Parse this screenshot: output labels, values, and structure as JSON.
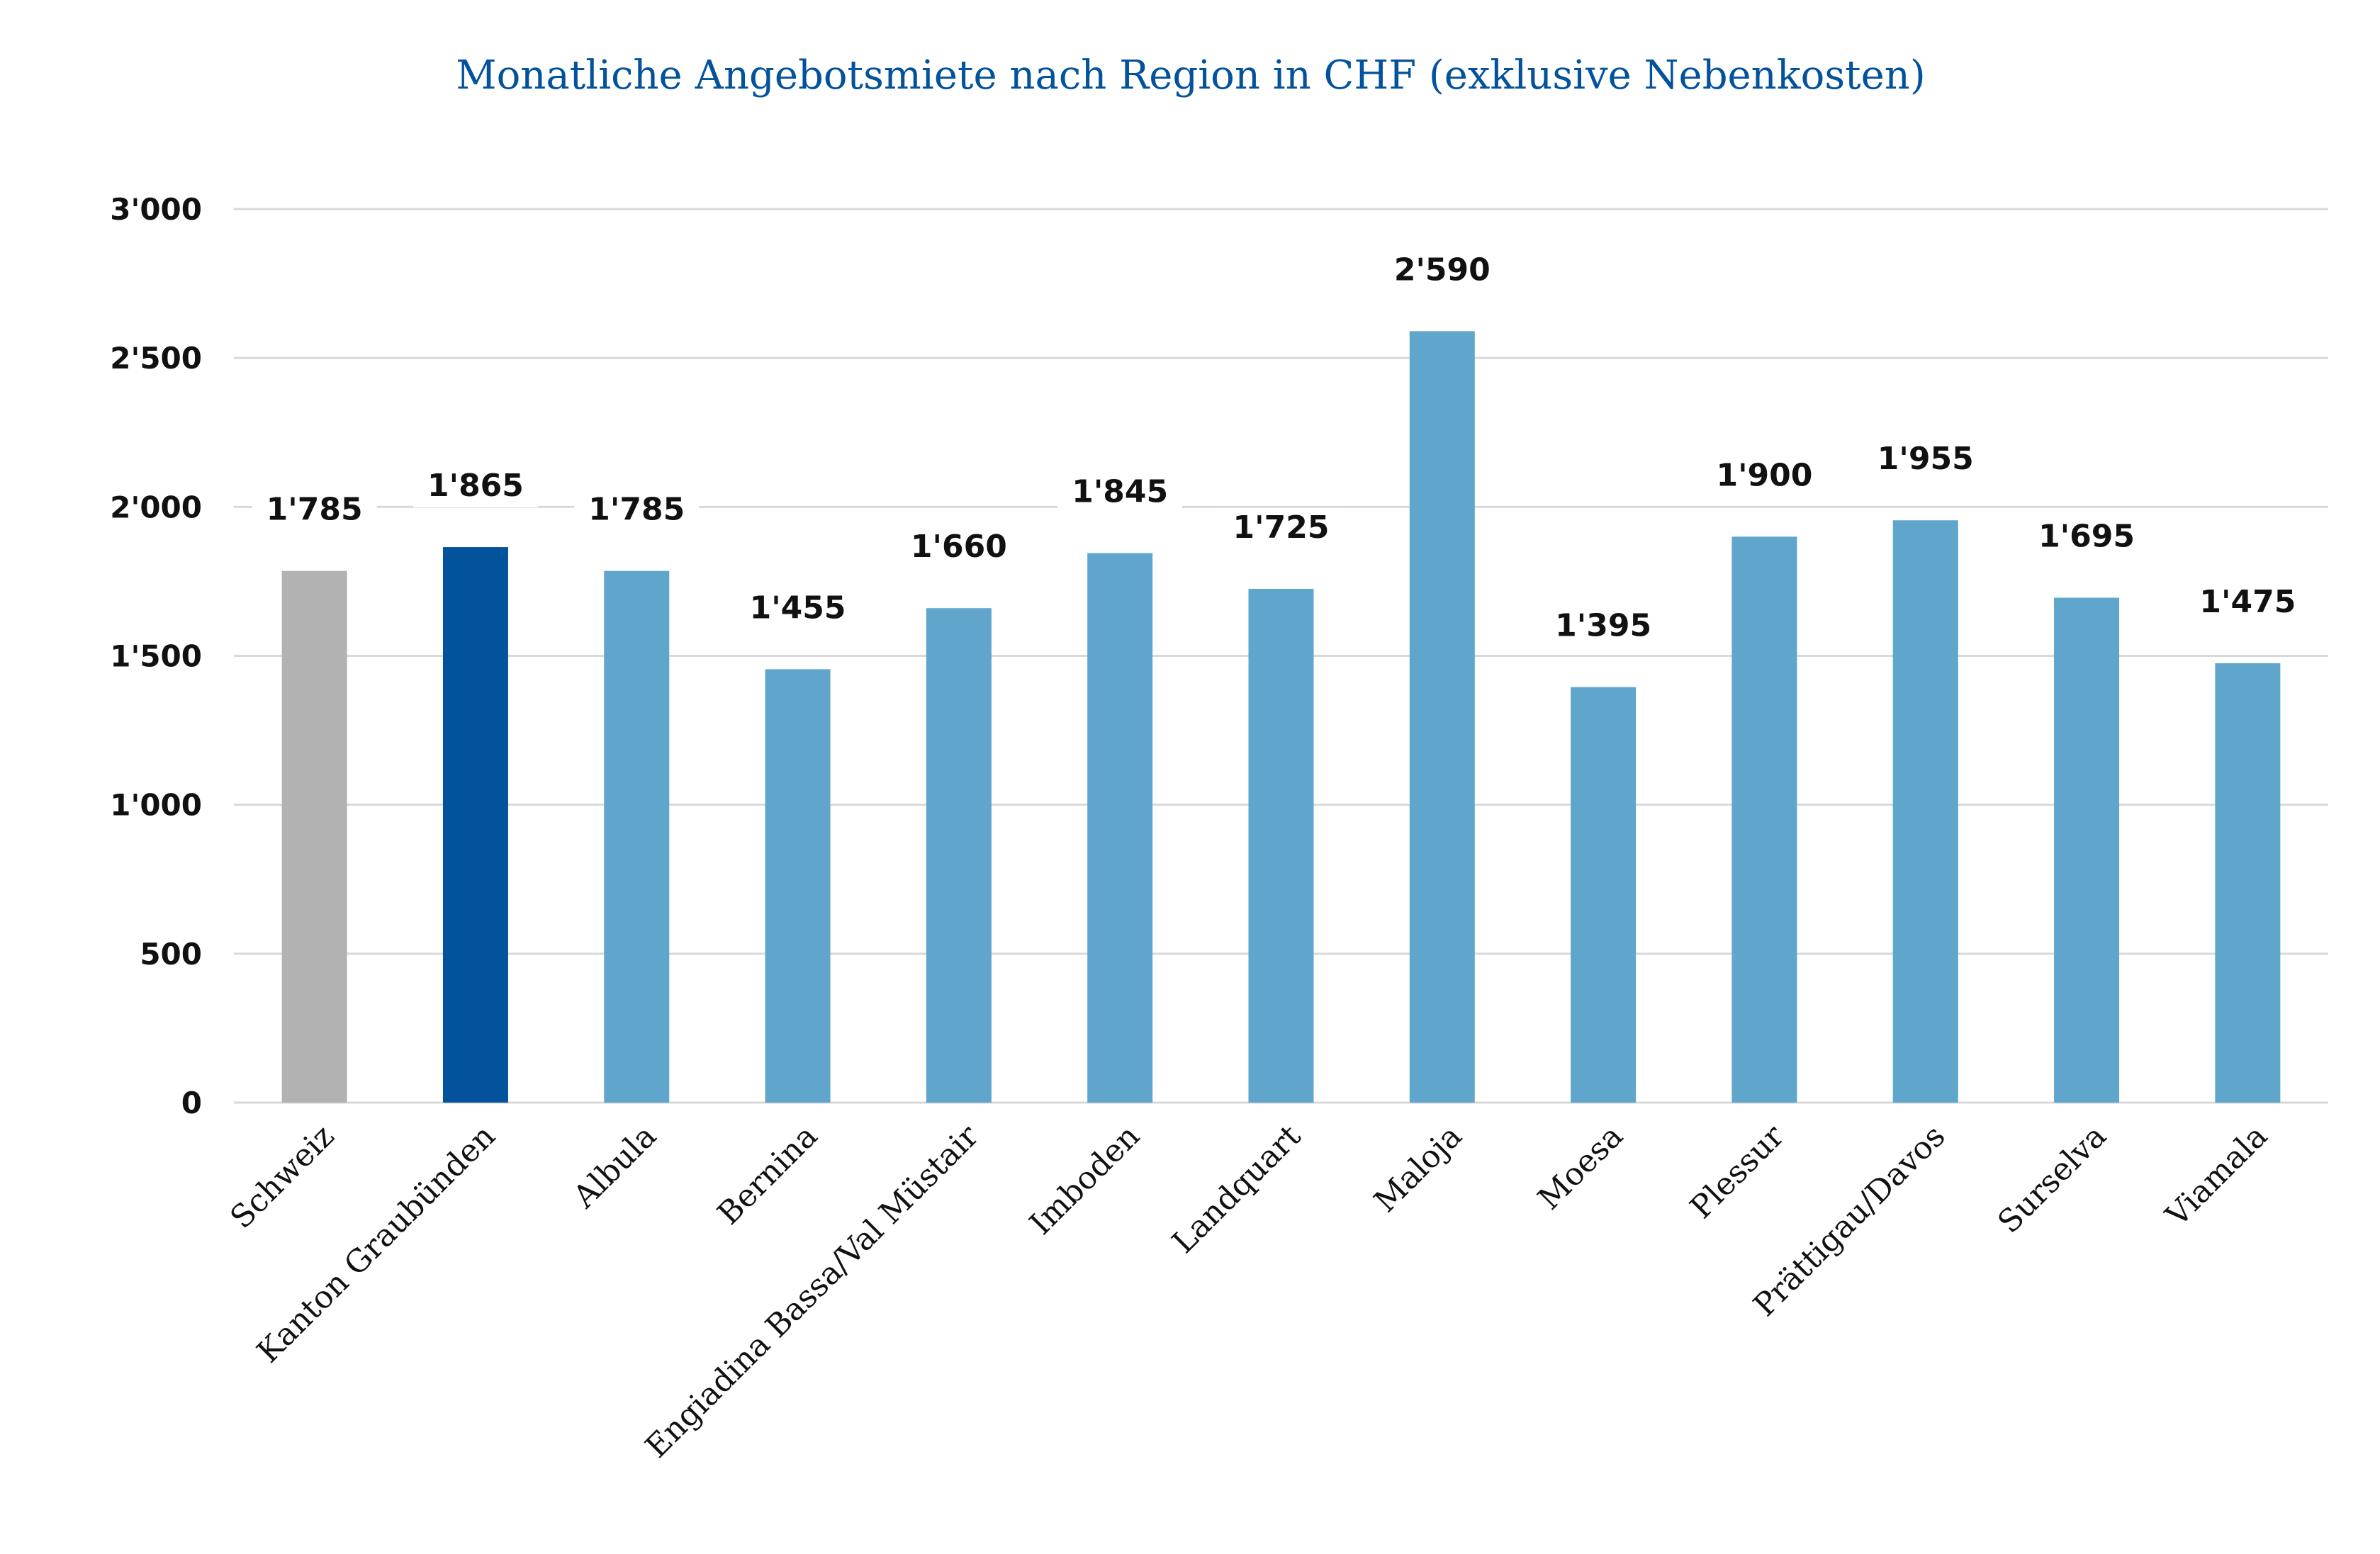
{
  "chart_data": {
    "type": "bar",
    "title": "Monatliche Angebotsmiete nach Region in CHF (exklusive Nebenkosten)",
    "xlabel": "",
    "ylabel": "",
    "ylim": [
      0,
      3000
    ],
    "yticks": [
      0,
      500,
      1000,
      1500,
      2000,
      2500,
      3000
    ],
    "ytick_labels": [
      "0",
      "500",
      "1'000",
      "1'500",
      "2'000",
      "2'500",
      "3'000"
    ],
    "grid": true,
    "legend": "none",
    "categories": [
      "Schweiz",
      "Kanton Graubünden",
      "Albula",
      "Bernina",
      "Engiadina Bassa/Val Müstair",
      "Imboden",
      "Landquart",
      "Maloja",
      "Moesa",
      "Plessur",
      "Prättigau/Davos",
      "Surselva",
      "Viamala"
    ],
    "values": [
      1785,
      1865,
      1785,
      1455,
      1660,
      1845,
      1725,
      2590,
      1395,
      1900,
      1955,
      1695,
      1475
    ],
    "data_labels": [
      "1'785",
      "1'865",
      "1'785",
      "1'455",
      "1'660",
      "1'845",
      "1'725",
      "2'590",
      "1'395",
      "1'900",
      "1'955",
      "1'695",
      "1'475"
    ],
    "bar_colors": [
      "#b2b2b2",
      "#02539c",
      "#60a5cc",
      "#60a5cc",
      "#60a5cc",
      "#60a5cc",
      "#60a5cc",
      "#60a5cc",
      "#60a5cc",
      "#60a5cc",
      "#60a5cc",
      "#60a5cc",
      "#60a5cc"
    ]
  },
  "colors": {
    "title": "#02529c",
    "grid": "#d9d9d9",
    "text": "#111111"
  }
}
